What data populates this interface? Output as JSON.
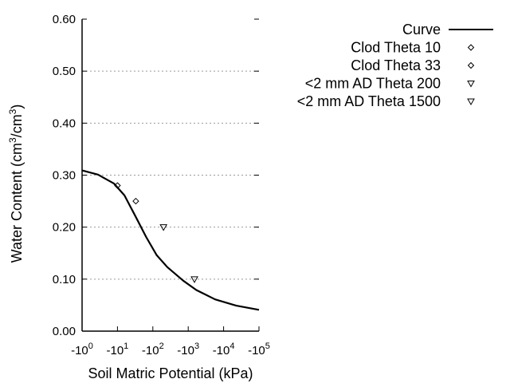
{
  "chart_data": {
    "type": "line",
    "title": "",
    "xlabel": "Soil Matric Potential (kPa)",
    "ylabel": {
      "prefix": "Water Content (cm",
      "sup1": "3",
      "mid": "/cm",
      "sup2": "3",
      "suffix": ")"
    },
    "x_scale": "log (negative potential magnitude)",
    "xlim": [
      1,
      100000
    ],
    "ylim": [
      0,
      0.6
    ],
    "x_ticks": [
      {
        "base": "-10",
        "exp": "0",
        "value": 1
      },
      {
        "base": "-10",
        "exp": "1",
        "value": 10
      },
      {
        "base": "-10",
        "exp": "2",
        "value": 100
      },
      {
        "base": "-10",
        "exp": "3",
        "value": 1000
      },
      {
        "base": "-10",
        "exp": "4",
        "value": 10000
      },
      {
        "base": "-10",
        "exp": "5",
        "value": 100000
      }
    ],
    "y_ticks": [
      "0.00",
      "0.10",
      "0.20",
      "0.30",
      "0.40",
      "0.50",
      "0.60"
    ],
    "grid": "horizontal dotted",
    "legend_placement": "right, outside plot",
    "series": [
      {
        "name": "Curve",
        "kind": "line",
        "color": "#000000",
        "x": [
          1,
          2.8,
          7.9,
          15.8,
          31.6,
          64.6,
          129,
          257,
          724,
          1698,
          5754,
          22909,
          100000
        ],
        "y": [
          0.309,
          0.301,
          0.284,
          0.261,
          0.222,
          0.181,
          0.146,
          0.123,
          0.097,
          0.079,
          0.061,
          0.049,
          0.041
        ]
      },
      {
        "name": "Clod Theta 10",
        "kind": "point",
        "marker": "diamond",
        "x": [
          10
        ],
        "y": [
          0.28
        ]
      },
      {
        "name": "Clod Theta 33",
        "kind": "point",
        "marker": "diamond",
        "x": [
          33
        ],
        "y": [
          0.25
        ]
      },
      {
        "name": "<2 mm AD Theta 200",
        "kind": "point",
        "marker": "triangle-down",
        "x": [
          200
        ],
        "y": [
          0.2
        ]
      },
      {
        "name": "<2 mm AD Theta 1500",
        "kind": "point",
        "marker": "triangle-down",
        "x": [
          1500
        ],
        "y": [
          0.1
        ]
      }
    ]
  }
}
